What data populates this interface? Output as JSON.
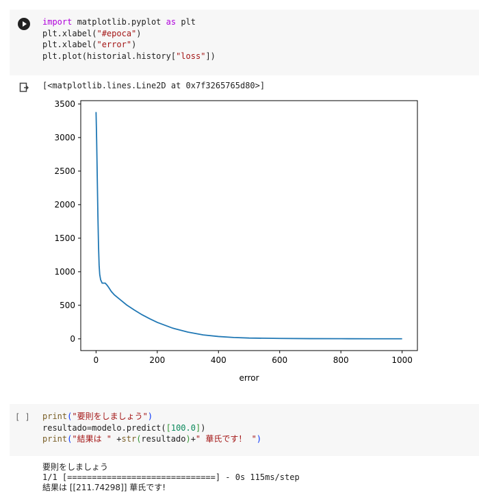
{
  "cell1": {
    "code": [
      {
        "kw": "import",
        "rest": " matplotlib.pyplot ",
        "kw2": "as",
        "rest2": " plt"
      },
      {
        "pre": "plt.xlabel(",
        "str": "\"#epoca\"",
        "post": ")"
      },
      {
        "pre": "plt.xlabel(",
        "str": "\"error\"",
        "post": ")"
      },
      {
        "pre": "plt.plot(historial.history[",
        "str": "\"loss\"",
        "post": "])"
      }
    ],
    "output_text": "[<matplotlib.lines.Line2D at 0x7f3265765d80>]"
  },
  "chart_data": {
    "type": "line",
    "title": "",
    "xlabel": "error",
    "ylabel": "",
    "xlim": [
      -50,
      1050
    ],
    "ylim": [
      -175,
      3550
    ],
    "xticks": [
      0,
      200,
      400,
      600,
      800,
      1000
    ],
    "yticks": [
      0,
      500,
      1000,
      1500,
      2000,
      2500,
      3000,
      3500
    ],
    "series": [
      {
        "color": "#1f77b4",
        "x": [
          0,
          2,
          4,
          6,
          8,
          10,
          12,
          15,
          20,
          25,
          30,
          35,
          40,
          50,
          60,
          80,
          100,
          125,
          150,
          175,
          200,
          250,
          300,
          350,
          400,
          450,
          500,
          600,
          700,
          800,
          900,
          1000
        ],
        "y": [
          3380,
          2950,
          2400,
          1850,
          1400,
          1100,
          960,
          880,
          830,
          830,
          830,
          805,
          775,
          705,
          655,
          580,
          505,
          430,
          360,
          300,
          245,
          160,
          100,
          58,
          35,
          20,
          12,
          6,
          3,
          2,
          1,
          1
        ]
      }
    ]
  },
  "cell2": {
    "exec_count": "[ ]",
    "line1": {
      "fn": "print",
      "str": "\"要則をしましょう\""
    },
    "line2": {
      "pre": "resultado=modelo.predict(",
      "num": "100.0",
      "post": ")"
    },
    "line3": {
      "fn": "print",
      "str1": "\"結果は \"",
      "mid": " +",
      "fn2": "str",
      "arg": "resultado",
      "str2": "\" 華氏です！ \""
    },
    "output": {
      "line1": "要則をしましょう",
      "line2": "1/1 [==============================] - 0s 115ms/step",
      "line3": "結果は [[211.74298]] 華氏です!"
    }
  }
}
